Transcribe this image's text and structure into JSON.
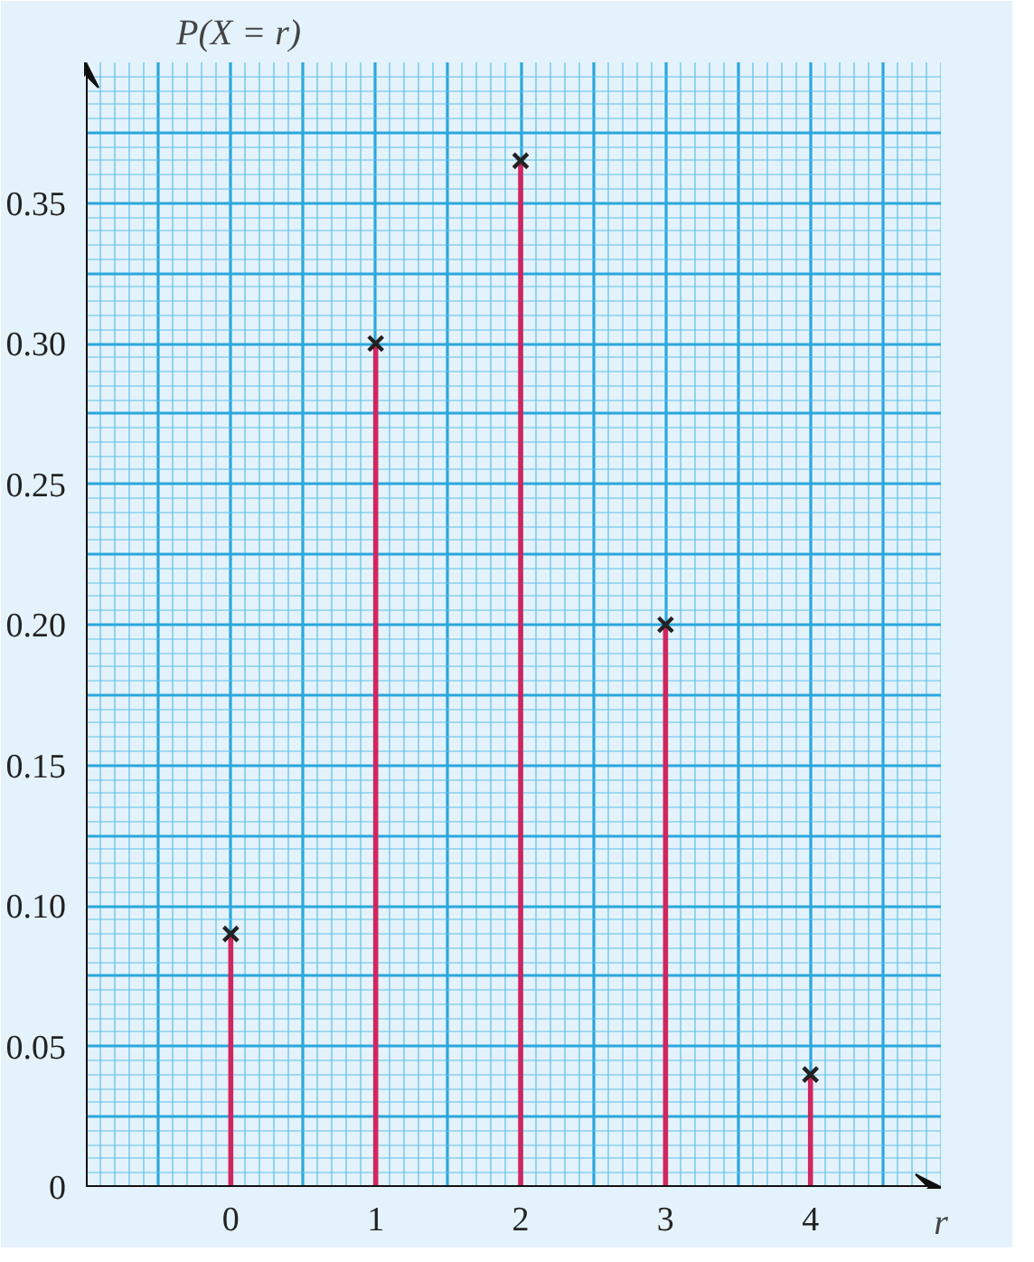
{
  "chart_data": {
    "type": "bar",
    "xlabel": "r",
    "ylabel": "P(X = r)",
    "x": [
      0,
      1,
      2,
      3,
      4
    ],
    "series": [
      {
        "color": "#d02660",
        "values": [
          0.09,
          0.3,
          0.365,
          0.2,
          0.04
        ]
      },
      {
        "type": "scatter",
        "color": "#222222",
        "values": [
          0.09,
          0.3,
          0.365,
          0.2,
          0.04
        ]
      }
    ],
    "xlim": [
      -1,
      4.9
    ],
    "ylim": [
      0,
      0.4
    ],
    "xticks": [
      0,
      1,
      2,
      3,
      4
    ],
    "yticks": [
      0,
      0.05,
      {
        "value": 0.1,
        "label": "0.10"
      },
      0.15,
      {
        "value": 0.2,
        "label": "0.20"
      },
      0.25,
      {
        "value": 0.3,
        "label": "0.30"
      },
      0.35
    ],
    "grid": true,
    "marker": "cross"
  }
}
